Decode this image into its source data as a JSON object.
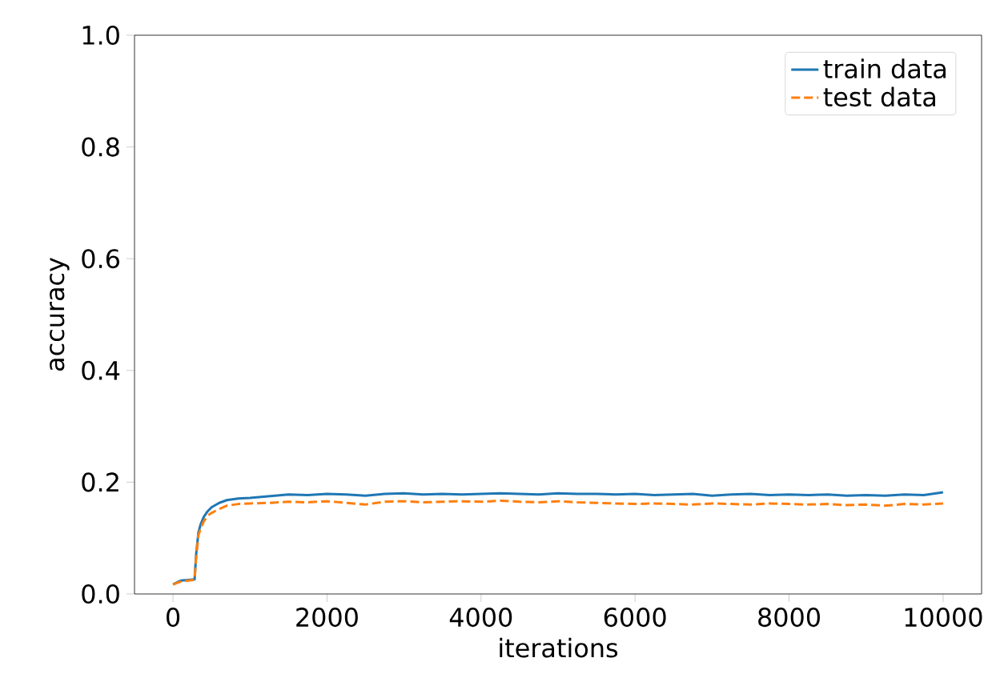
{
  "chart_data": {
    "type": "line",
    "xlabel": "iterations",
    "ylabel": "accuracy",
    "xlim": [
      -500,
      10500
    ],
    "ylim": [
      0,
      1
    ],
    "xticks": [
      0,
      2000,
      4000,
      6000,
      8000,
      10000
    ],
    "yticks": [
      {
        "value": 0,
        "label": "0.0"
      },
      {
        "value": 0.2,
        "label": "0.2"
      },
      {
        "value": 0.4,
        "label": "0.4"
      },
      {
        "value": 0.6,
        "label": "0.6"
      },
      {
        "value": 0.8,
        "label": "0.8"
      },
      {
        "value": 1,
        "label": "1.0"
      }
    ],
    "legend": "top right",
    "grid": false,
    "x": [
      0,
      100,
      200,
      280,
      300,
      330,
      360,
      400,
      450,
      500,
      600,
      700,
      850,
      1000,
      1250,
      1500,
      1750,
      2000,
      2250,
      2500,
      2750,
      3000,
      3250,
      3500,
      3750,
      4000,
      4250,
      4500,
      4750,
      5000,
      5250,
      5500,
      5750,
      6000,
      6250,
      6500,
      6750,
      7000,
      7250,
      7500,
      7750,
      8000,
      8250,
      8500,
      8750,
      9000,
      9250,
      9500,
      9750,
      10000
    ],
    "series": [
      {
        "name": "train data",
        "color": "#1f77b4",
        "line_style": "solid",
        "values": [
          0.017,
          0.024,
          0.025,
          0.026,
          0.07,
          0.11,
          0.125,
          0.138,
          0.148,
          0.155,
          0.163,
          0.168,
          0.171,
          0.172,
          0.175,
          0.178,
          0.177,
          0.179,
          0.178,
          0.176,
          0.179,
          0.18,
          0.178,
          0.179,
          0.178,
          0.179,
          0.18,
          0.179,
          0.178,
          0.18,
          0.179,
          0.179,
          0.178,
          0.179,
          0.177,
          0.178,
          0.179,
          0.176,
          0.178,
          0.179,
          0.177,
          0.178,
          0.177,
          0.178,
          0.176,
          0.177,
          0.176,
          0.178,
          0.177,
          0.182
        ]
      },
      {
        "name": "test data",
        "color": "#ff7f0e",
        "line_style": "dashed",
        "values": [
          0.017,
          0.022,
          0.024,
          0.025,
          0.065,
          0.105,
          0.118,
          0.13,
          0.14,
          0.145,
          0.152,
          0.158,
          0.161,
          0.162,
          0.163,
          0.165,
          0.164,
          0.166,
          0.163,
          0.16,
          0.165,
          0.166,
          0.164,
          0.165,
          0.166,
          0.165,
          0.167,
          0.165,
          0.164,
          0.166,
          0.164,
          0.163,
          0.162,
          0.161,
          0.162,
          0.161,
          0.16,
          0.162,
          0.161,
          0.16,
          0.162,
          0.161,
          0.16,
          0.161,
          0.159,
          0.16,
          0.158,
          0.161,
          0.16,
          0.162
        ]
      }
    ]
  }
}
